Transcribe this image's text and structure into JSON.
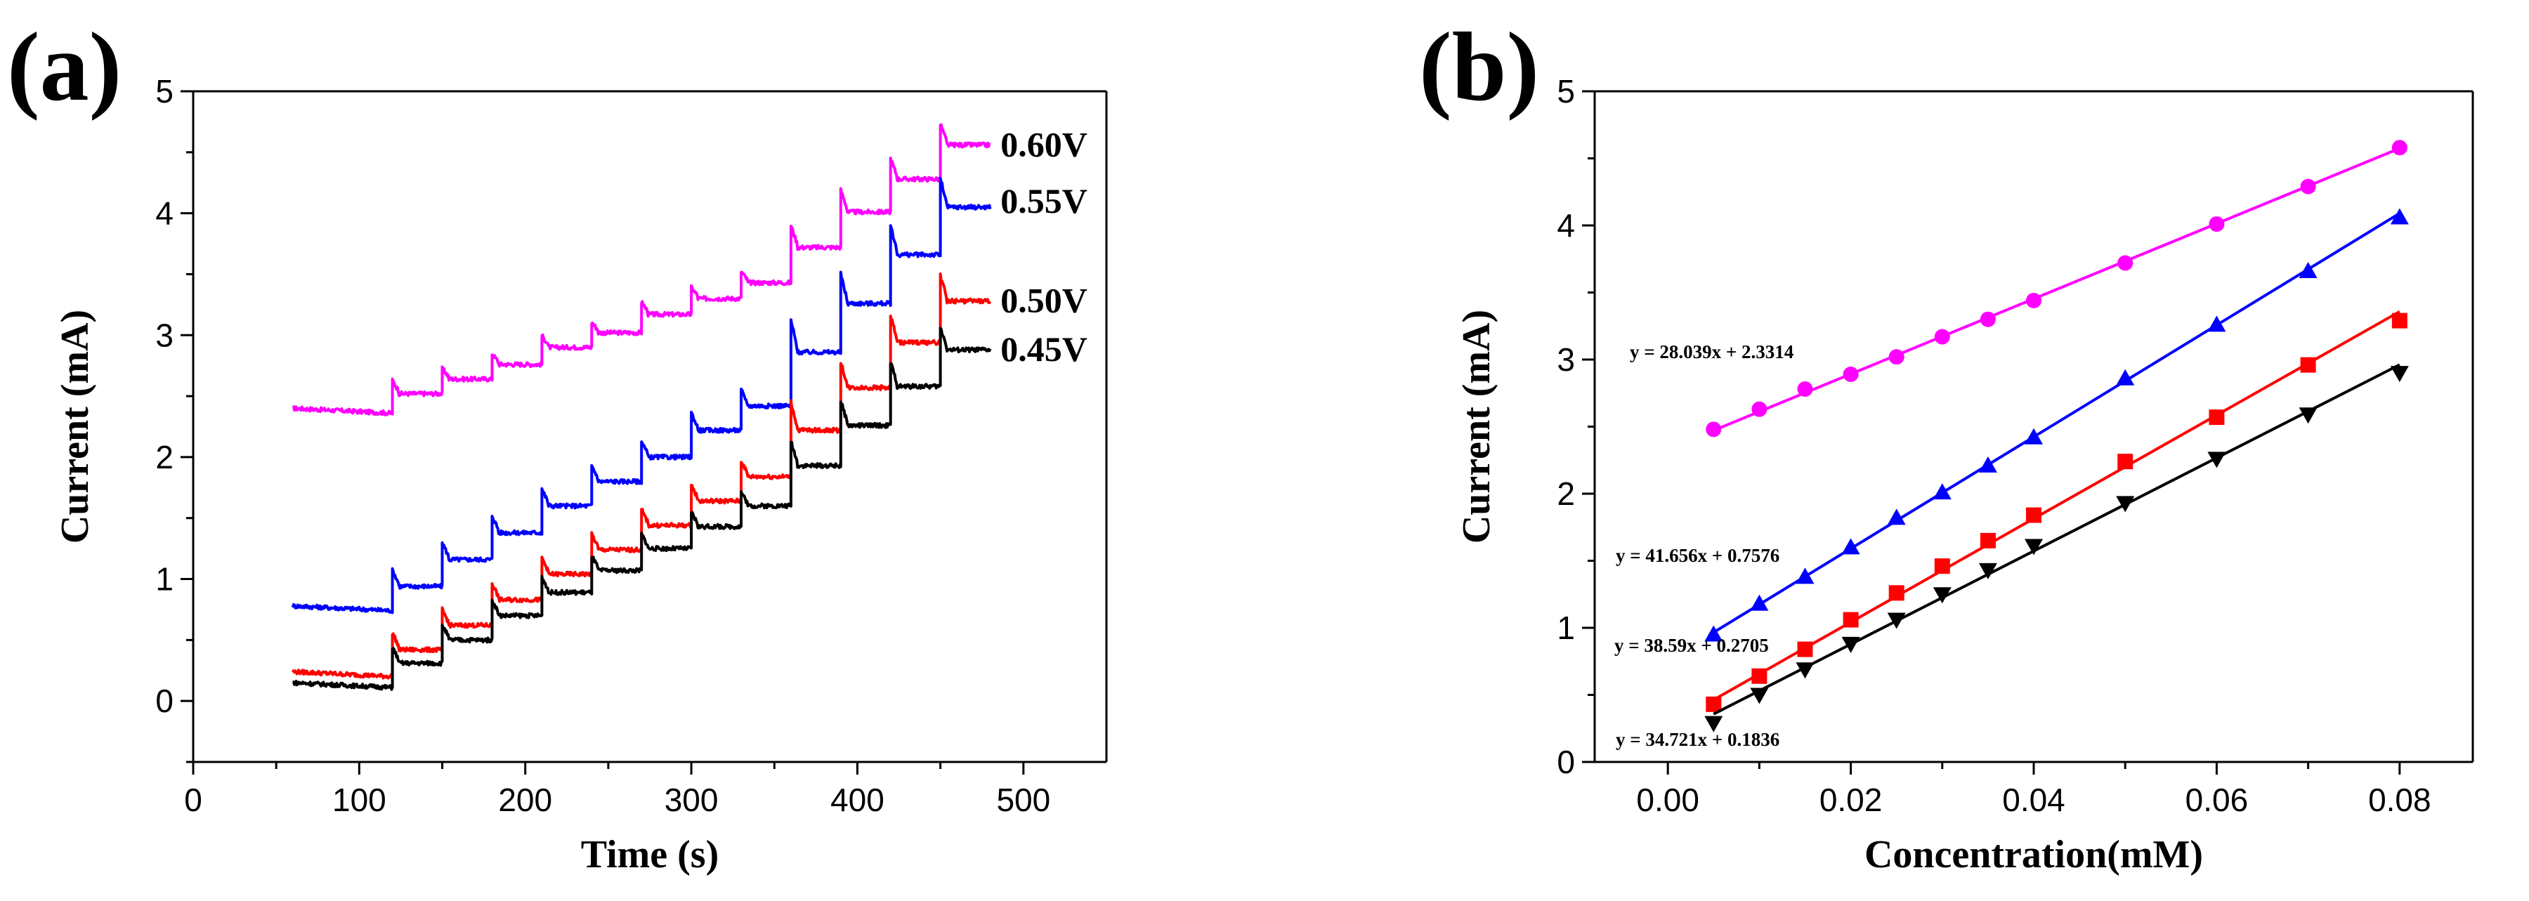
{
  "panels": {
    "a": {
      "label": "(a)"
    },
    "b": {
      "label": "(b)"
    }
  },
  "chart_data": [
    {
      "type": "line",
      "panel": "(a)",
      "xlabel": "Time (s)",
      "ylabel": "Current (mA)",
      "xlim": [
        0,
        550
      ],
      "ylim": [
        -0.5,
        5
      ],
      "xticks": [
        0,
        100,
        200,
        300,
        400,
        500
      ],
      "yticks": [
        0,
        1,
        2,
        3,
        4,
        5
      ],
      "step_times": [
        60,
        120,
        150,
        180,
        210,
        240,
        270,
        300,
        330,
        360,
        390,
        420,
        450,
        480
      ],
      "series": [
        {
          "name": "0.60V",
          "color": "#ff00ff",
          "levels": [
            2.36,
            2.52,
            2.64,
            2.76,
            2.9,
            3.02,
            3.17,
            3.3,
            3.43,
            3.72,
            4.01,
            4.28,
            4.56
          ]
        },
        {
          "name": "0.55V",
          "color": "#0000ff",
          "levels": [
            0.74,
            0.94,
            1.16,
            1.38,
            1.6,
            1.8,
            2.0,
            2.22,
            2.42,
            2.86,
            3.26,
            3.66,
            4.05
          ]
        },
        {
          "name": "0.50V",
          "color": "#ff0000",
          "levels": [
            0.2,
            0.42,
            0.62,
            0.83,
            1.04,
            1.24,
            1.44,
            1.64,
            1.84,
            2.22,
            2.57,
            2.94,
            3.28
          ]
        },
        {
          "name": "0.45V",
          "color": "#000000",
          "levels": [
            0.11,
            0.31,
            0.5,
            0.7,
            0.89,
            1.07,
            1.25,
            1.43,
            1.6,
            1.93,
            2.26,
            2.58,
            2.88
          ]
        }
      ]
    },
    {
      "type": "scatter",
      "panel": "(b)",
      "xlabel": "Concentration(mM)",
      "ylabel": "Current (mA)",
      "xlim": [
        -0.008,
        0.088
      ],
      "ylim": [
        0,
        5
      ],
      "xticks": [
        "0.00",
        "0.02",
        "0.04",
        "0.06",
        "0.08"
      ],
      "yticks": [
        0,
        1,
        2,
        3,
        4,
        5
      ],
      "x": [
        0.005,
        0.01,
        0.015,
        0.02,
        0.025,
        0.03,
        0.035,
        0.04,
        0.05,
        0.06,
        0.07,
        0.08
      ],
      "series": [
        {
          "name": "0.60V",
          "color": "#ff00ff",
          "marker": "circle",
          "values": [
            2.48,
            2.63,
            2.78,
            2.89,
            3.02,
            3.17,
            3.3,
            3.44,
            3.72,
            4.01,
            4.29,
            4.58
          ],
          "equation": "y = 28.039x + 2.3314"
        },
        {
          "name": "0.55V",
          "color": "#0000ff",
          "marker": "triangle-up",
          "values": [
            0.95,
            1.18,
            1.38,
            1.6,
            1.82,
            2.01,
            2.21,
            2.42,
            2.86,
            3.26,
            3.66,
            4.06
          ],
          "equation": "y = 41.656x + 0.7576"
        },
        {
          "name": "0.50V",
          "color": "#ff0000",
          "marker": "square",
          "values": [
            0.43,
            0.64,
            0.84,
            1.06,
            1.26,
            1.46,
            1.65,
            1.84,
            2.24,
            2.57,
            2.96,
            3.29
          ],
          "equation": "y = 38.59x + 0.2705"
        },
        {
          "name": "0.45V",
          "color": "#000000",
          "marker": "triangle-down",
          "values": [
            0.29,
            0.5,
            0.69,
            0.88,
            1.06,
            1.25,
            1.43,
            1.61,
            1.93,
            2.26,
            2.59,
            2.9
          ],
          "equation": "y = 34.721x + 0.1836"
        }
      ]
    }
  ]
}
